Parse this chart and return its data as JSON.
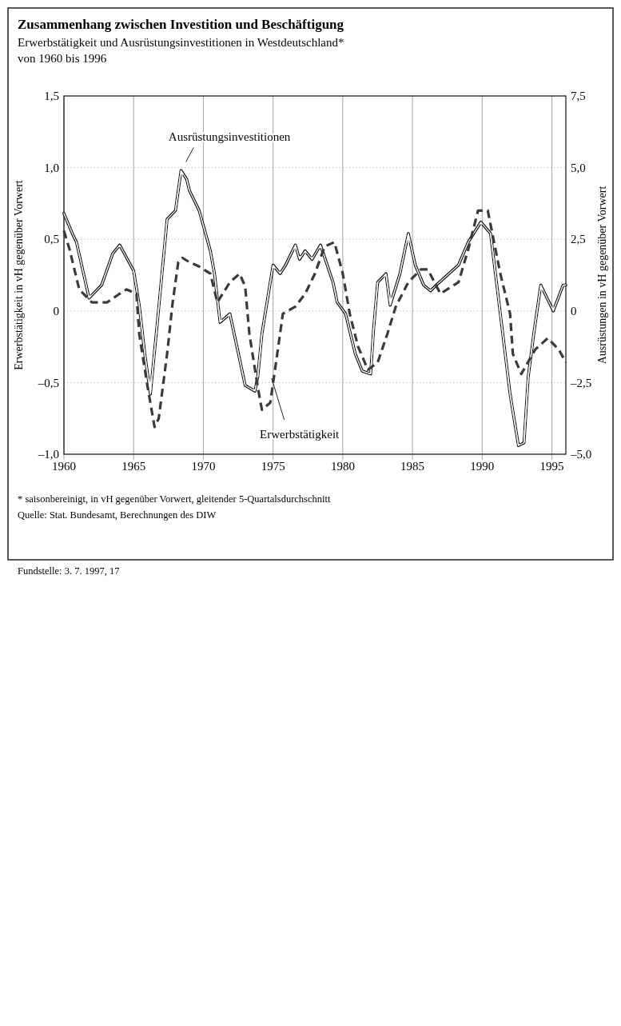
{
  "chart_data": {
    "type": "line",
    "title": "Zusammenhang zwischen Investition und Beschäftigung",
    "subtitle": "Erwerbstätigkeit und Ausrüstungsinvestitionen in Westdeutschland*\nvon 1960 bis 1996",
    "ylabel": "Erwerbstätigkeit in vH gegenüber Vorwert",
    "y2label": "Ausrüstungen in vH gegenüber Vorwert",
    "annotations": [
      "* saisonbereinigt, in vH gegenüber Vorwert, gleitender 5-Quartalsdurchschnitt",
      "Quelle: Stat. Bundesamt, Berechnungen des DIW",
      "Fundstelle: 3. 7. 1997, 17"
    ],
    "xlim": [
      1960,
      1996
    ],
    "xticks": [
      1960,
      1965,
      1970,
      1975,
      1980,
      1985,
      1990,
      1995
    ],
    "ylim": [
      -1,
      1.5
    ],
    "yticks": [
      {
        "value": -1,
        "label": "–1,0"
      },
      {
        "value": -0.5,
        "label": "–0,5"
      },
      {
        "value": 0,
        "label": "0"
      },
      {
        "value": 0.5,
        "label": "0,5"
      },
      {
        "value": 1,
        "label": "1,0"
      },
      {
        "value": 1.5,
        "label": "1,5"
      }
    ],
    "y2lim": [
      -5,
      7.5
    ],
    "y2ticks": [
      {
        "value": -5,
        "label": "–5,0"
      },
      {
        "value": -2.5,
        "label": "–2,5"
      },
      {
        "value": 0,
        "label": "0"
      },
      {
        "value": 2.5,
        "label": "2,5"
      },
      {
        "value": 5,
        "label": "5,0"
      },
      {
        "value": 7.5,
        "label": "7,5"
      }
    ],
    "grid": true,
    "series": [
      {
        "name": "Ausrüstungsinvestitionen",
        "color": "#111111",
        "axis": "y2",
        "line_style": "solid",
        "x": [
          1960,
          1960.6,
          1960.9,
          1961.8,
          1962.7,
          1963.5,
          1964,
          1964.5,
          1965,
          1965.4,
          1965.8,
          1966.2,
          1966.7,
          1967.4,
          1968,
          1968.4,
          1968.8,
          1969,
          1969.7,
          1970.5,
          1970.8,
          1971.2,
          1971.9,
          1972.3,
          1973,
          1973.7,
          1973.9,
          1974.2,
          1974.6,
          1975,
          1975.5,
          1975.9,
          1976.6,
          1976.9,
          1977.3,
          1977.8,
          1978.4,
          1979.3,
          1979.6,
          1980.2,
          1980.9,
          1981.4,
          1982,
          1982.2,
          1982.5,
          1983.1,
          1983.4,
          1984.1,
          1984.7,
          1985.2,
          1985.8,
          1986.3,
          1986.7,
          1988.3,
          1989,
          1989.9,
          1990.6,
          1991.3,
          1992,
          1992.6,
          1993,
          1993.3,
          1993.7,
          1994.2,
          1995.1,
          1995.8,
          1996
        ],
        "values": [
          3.4,
          2.7,
          2.4,
          0.45,
          0.9,
          2.0,
          2.3,
          1.85,
          1.4,
          0.2,
          -1.5,
          -2.9,
          -0.4,
          3.2,
          3.5,
          4.9,
          4.6,
          4.2,
          3.5,
          2.1,
          1.3,
          -0.4,
          -0.1,
          -1.0,
          -2.6,
          -2.8,
          -2.3,
          -0.8,
          0.4,
          1.6,
          1.3,
          1.6,
          2.3,
          1.8,
          2.1,
          1.8,
          2.3,
          1.0,
          0.3,
          -0.1,
          -1.5,
          -2.1,
          -2.2,
          -0.7,
          1.0,
          1.3,
          0.2,
          1.3,
          2.7,
          1.6,
          0.9,
          0.7,
          0.9,
          1.6,
          2.4,
          3.1,
          2.7,
          -0.1,
          -2.9,
          -4.7,
          -4.6,
          -2.3,
          -0.8,
          0.9,
          0,
          0.9,
          0.9
        ]
      },
      {
        "name": "Erwerbstätigkeit",
        "color": "#3a3a3a",
        "line_style": "dashed",
        "x": [
          1960,
          1960.4,
          1961.1,
          1962,
          1963.1,
          1964,
          1964.5,
          1965.2,
          1965.4,
          1966,
          1966.5,
          1966.8,
          1967.4,
          1967.8,
          1968.2,
          1968.5,
          1969,
          1969.7,
          1970.5,
          1971,
          1971.9,
          1972.6,
          1973,
          1973.3,
          1973.9,
          1974.2,
          1974.8,
          1975.3,
          1975.7,
          1976.6,
          1977.3,
          1978,
          1978.7,
          1979.4,
          1980,
          1980.5,
          1981.1,
          1981.8,
          1982.5,
          1983.2,
          1983.8,
          1984.7,
          1985.6,
          1986.1,
          1987,
          1988.3,
          1989,
          1989.7,
          1990.4,
          1991.3,
          1992,
          1992.2,
          1992.8,
          1993.8,
          1994.7,
          1995.5,
          1996
        ],
        "values": [
          0.56,
          0.43,
          0.15,
          0.06,
          0.06,
          0.12,
          0.15,
          0.12,
          -0.16,
          -0.53,
          -0.81,
          -0.75,
          -0.3,
          0.06,
          0.34,
          0.37,
          0.34,
          0.31,
          0.26,
          0.06,
          0.2,
          0.26,
          0.17,
          -0.16,
          -0.53,
          -0.69,
          -0.64,
          -0.3,
          -0.02,
          0.03,
          0.12,
          0.26,
          0.45,
          0.48,
          0.26,
          -0.02,
          -0.25,
          -0.41,
          -0.36,
          -0.16,
          0.03,
          0.2,
          0.29,
          0.29,
          0.12,
          0.2,
          0.43,
          0.7,
          0.7,
          0.26,
          -0.02,
          -0.3,
          -0.44,
          -0.27,
          -0.19,
          -0.27,
          -0.36
        ]
      }
    ]
  }
}
